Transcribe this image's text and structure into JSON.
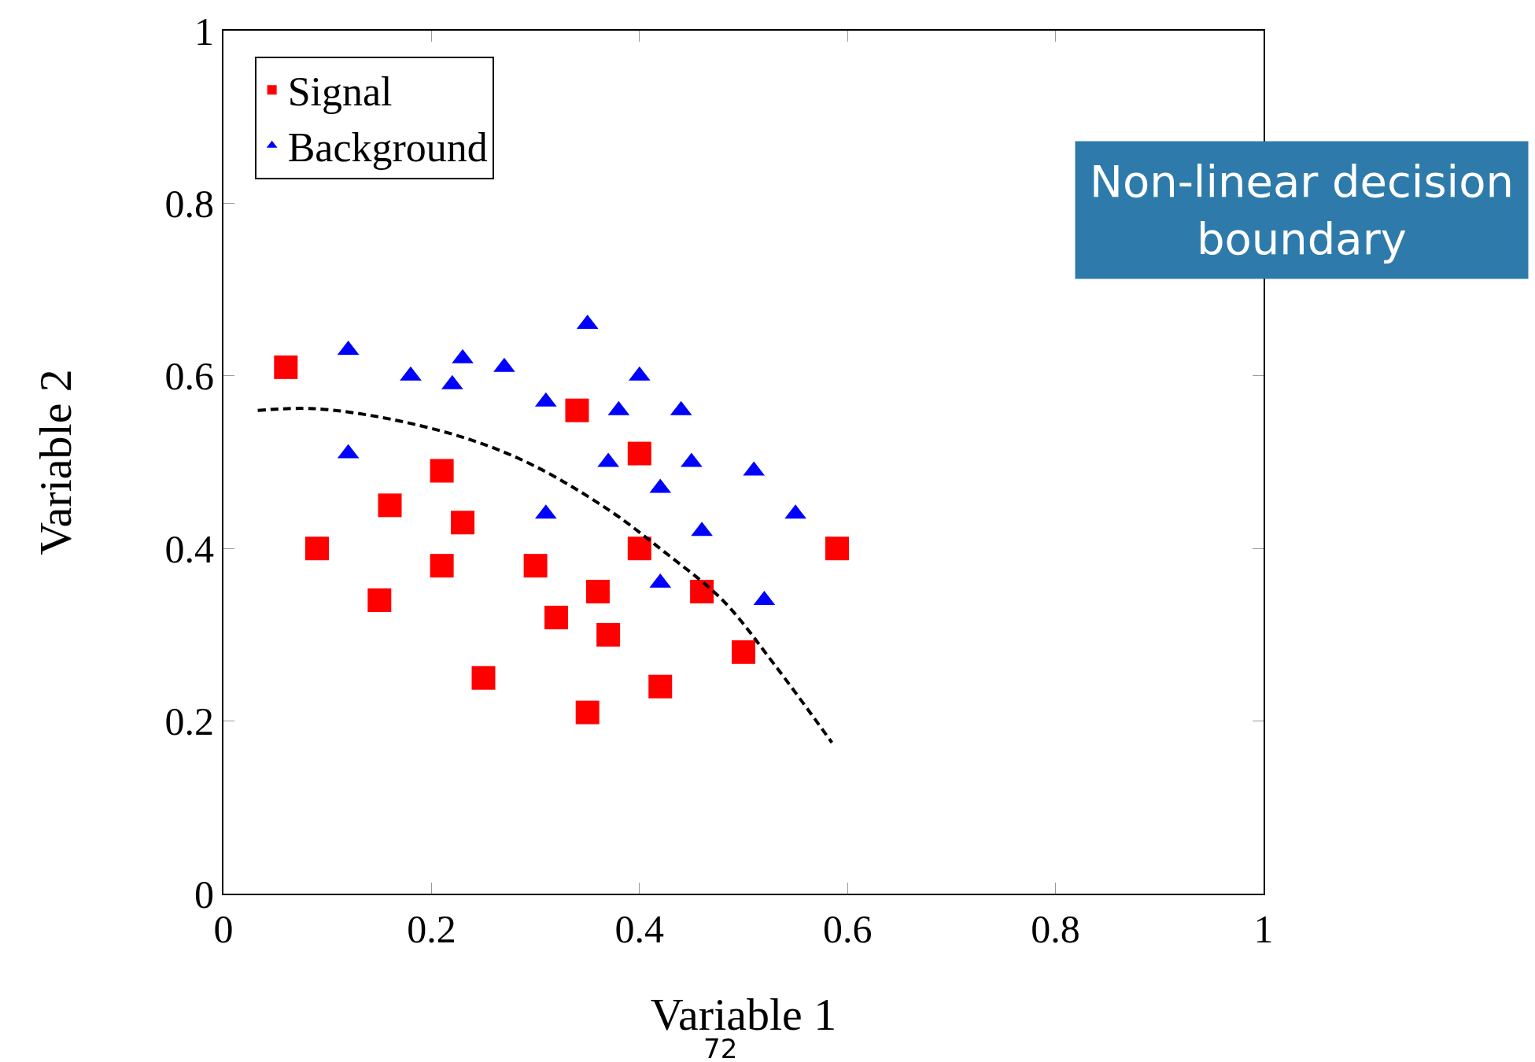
{
  "chart_data": {
    "type": "scatter",
    "xlabel": "Variable 1",
    "ylabel": "Variable 2",
    "xlim": [
      0,
      1
    ],
    "ylim": [
      0,
      1
    ],
    "xticks": [
      0,
      0.2,
      0.4,
      0.6,
      0.8,
      1
    ],
    "yticks": [
      0,
      0.2,
      0.4,
      0.6,
      0.8,
      1
    ],
    "legend": "top left",
    "annotations": [
      "Non-linear decision\nboundary",
      "72"
    ],
    "series": [
      {
        "name": "Signal",
        "color": "#ff0000",
        "marker": "square",
        "x": [
          0.06,
          0.09,
          0.15,
          0.16,
          0.21,
          0.21,
          0.23,
          0.25,
          0.3,
          0.32,
          0.34,
          0.35,
          0.36,
          0.37,
          0.4,
          0.4,
          0.42,
          0.46,
          0.5,
          0.59
        ],
        "values": [
          0.61,
          0.4,
          0.34,
          0.45,
          0.49,
          0.38,
          0.43,
          0.25,
          0.38,
          0.32,
          0.56,
          0.21,
          0.35,
          0.3,
          0.51,
          0.4,
          0.24,
          0.35,
          0.28,
          0.4
        ]
      },
      {
        "name": "Background",
        "color": "#0000ff",
        "marker": "triangle",
        "x": [
          0.12,
          0.12,
          0.18,
          0.22,
          0.23,
          0.27,
          0.31,
          0.31,
          0.35,
          0.37,
          0.38,
          0.4,
          0.42,
          0.42,
          0.44,
          0.45,
          0.46,
          0.51,
          0.52,
          0.55
        ],
        "values": [
          0.63,
          0.51,
          0.6,
          0.59,
          0.62,
          0.61,
          0.57,
          0.44,
          0.66,
          0.5,
          0.56,
          0.6,
          0.47,
          0.36,
          0.56,
          0.5,
          0.42,
          0.49,
          0.34,
          0.44
        ]
      },
      {
        "type": "line",
        "color": "#000000",
        "line_style": "dashed",
        "x": [
          0.033,
          0.087,
          0.16,
          0.24,
          0.3,
          0.37,
          0.425,
          0.48,
          0.53,
          0.585
        ],
        "values": [
          0.56,
          0.562,
          0.55,
          0.525,
          0.495,
          0.445,
          0.395,
          0.34,
          0.265,
          0.175
        ]
      }
    ]
  }
}
